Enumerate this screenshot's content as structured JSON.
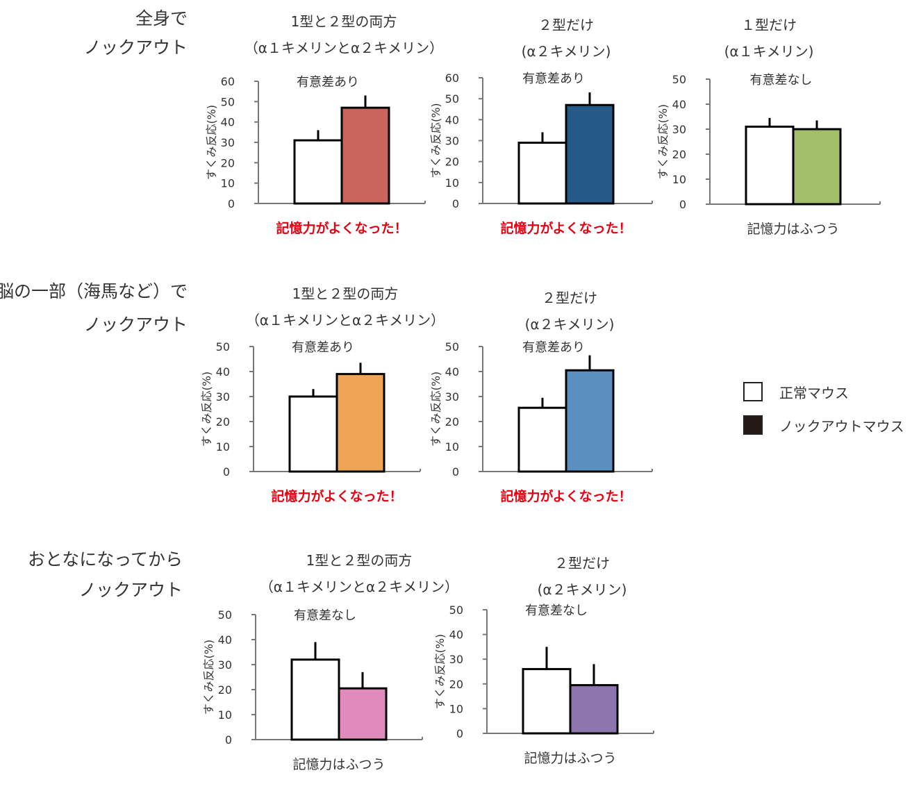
{
  "rows": [
    {
      "label_lines": [
        "全身で",
        "ノックアウト"
      ]
    },
    {
      "label_lines": [
        "脳の一部（海馬など）で",
        "ノックアウト"
      ]
    },
    {
      "label_lines": [
        "おとなになってから",
        "ノックアウト"
      ]
    }
  ],
  "legend": {
    "items": [
      {
        "label": "正常マウス",
        "color": "#ffffff"
      },
      {
        "label": "ノックアウトマウス",
        "color": "#231815"
      }
    ]
  },
  "chart_data": [
    {
      "type": "bar",
      "title_lines": [
        "1型と２型の両方",
        "（α１キメリンとα２キメリン）"
      ],
      "categories": [
        "正常マウス",
        "ノックアウトマウス"
      ],
      "values": [
        31,
        47
      ],
      "errors": [
        5,
        6
      ],
      "colors": [
        "#ffffff",
        "#c8645c"
      ],
      "ylabel": "すくみ反応(%)",
      "ylim": [
        0,
        60
      ],
      "yticks": [
        0,
        10,
        20,
        30,
        40,
        50,
        60
      ],
      "annotation": "有意差あり",
      "conclusion": "記憶力がよくなった！",
      "conclusion_color": "#e60012"
    },
    {
      "type": "bar",
      "title_lines": [
        "２型だけ",
        "(α２キメリン)"
      ],
      "categories": [
        "正常マウス",
        "ノックアウトマウス"
      ],
      "values": [
        29,
        47
      ],
      "errors": [
        5,
        6
      ],
      "colors": [
        "#ffffff",
        "#255987"
      ],
      "ylabel": "すくみ反応(%)",
      "ylim": [
        0,
        60
      ],
      "yticks": [
        0,
        10,
        20,
        30,
        40,
        50,
        60
      ],
      "annotation": "有意差あり",
      "conclusion": "記憶力がよくなった！",
      "conclusion_color": "#e60012"
    },
    {
      "type": "bar",
      "title_lines": [
        "１型だけ",
        "(α１キメリン)"
      ],
      "categories": [
        "正常マウス",
        "ノックアウトマウス"
      ],
      "values": [
        31,
        30
      ],
      "errors": [
        3.5,
        3.5
      ],
      "colors": [
        "#ffffff",
        "#a4bf6b"
      ],
      "ylabel": "すくみ反応(%)",
      "ylim": [
        0,
        50
      ],
      "yticks": [
        0,
        10,
        20,
        30,
        40,
        50
      ],
      "annotation": "有意差なし",
      "conclusion": "記憶力はふつう",
      "conclusion_color": "#333333"
    },
    {
      "type": "bar",
      "title_lines": [
        "1型と２型の両方",
        "（α１キメリンとα２キメリン）"
      ],
      "categories": [
        "正常マウス",
        "ノックアウトマウス"
      ],
      "values": [
        30,
        39
      ],
      "errors": [
        3,
        4.5
      ],
      "colors": [
        "#ffffff",
        "#f0a556"
      ],
      "ylabel": "すくみ反応(%)",
      "ylim": [
        0,
        50
      ],
      "yticks": [
        0,
        10,
        20,
        30,
        40,
        50
      ],
      "annotation": "有意差あり",
      "conclusion": "記憶力がよくなった！",
      "conclusion_color": "#e60012"
    },
    {
      "type": "bar",
      "title_lines": [
        "２型だけ",
        "(α２キメリン)"
      ],
      "categories": [
        "正常マウス",
        "ノックアウトマウス"
      ],
      "values": [
        25.5,
        40.5
      ],
      "errors": [
        4,
        6
      ],
      "colors": [
        "#ffffff",
        "#5b8fbf"
      ],
      "ylabel": "すくみ反応(%)",
      "ylim": [
        0,
        50
      ],
      "yticks": [
        0,
        10,
        20,
        30,
        40,
        50
      ],
      "annotation": "有意差あり",
      "conclusion": "記憶力がよくなった！",
      "conclusion_color": "#e60012"
    },
    {
      "type": "bar",
      "title_lines": [
        "1型と２型の両方",
        "（α１キメリンとα２キメリン）"
      ],
      "categories": [
        "正常マウス",
        "ノックアウトマウス"
      ],
      "values": [
        32,
        20.5
      ],
      "errors": [
        7,
        6.5
      ],
      "colors": [
        "#ffffff",
        "#e08bbc"
      ],
      "ylabel": "すくみ反応(%)",
      "ylim": [
        0,
        50
      ],
      "yticks": [
        0,
        10,
        20,
        30,
        40,
        50
      ],
      "annotation": "有意差なし",
      "conclusion": "記憶力はふつう",
      "conclusion_color": "#333333"
    },
    {
      "type": "bar",
      "title_lines": [
        "２型だけ",
        "(α２キメリン)"
      ],
      "categories": [
        "正常マウス",
        "ノックアウトマウス"
      ],
      "values": [
        26,
        19.5
      ],
      "errors": [
        9,
        8.5
      ],
      "colors": [
        "#ffffff",
        "#8c76ad"
      ],
      "ylabel": "すくみ反応(%)",
      "ylim": [
        0,
        50
      ],
      "yticks": [
        0,
        10,
        20,
        30,
        40,
        50
      ],
      "annotation": "有意差なし",
      "conclusion": "記憶力はふつう",
      "conclusion_color": "#333333"
    }
  ]
}
